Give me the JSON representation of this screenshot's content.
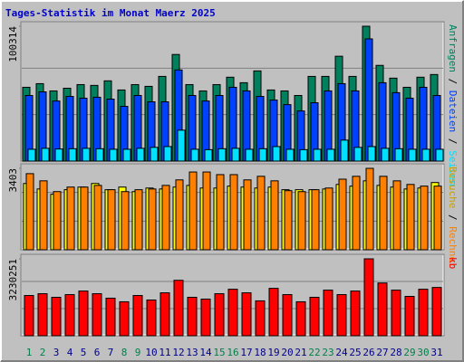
{
  "chart_data": {
    "type": "bar",
    "title": "Tages-Statistik im Monat Maerz 2025",
    "categories": [
      "1",
      "2",
      "3",
      "4",
      "5",
      "6",
      "7",
      "8",
      "9",
      "10",
      "11",
      "12",
      "13",
      "14",
      "15",
      "16",
      "17",
      "18",
      "19",
      "20",
      "21",
      "22",
      "23",
      "24",
      "25",
      "26",
      "27",
      "28",
      "29",
      "30",
      "31"
    ],
    "category_colors": [
      "#00804c",
      "#00804c",
      "#00008b",
      "#00008b",
      "#00008b",
      "#00008b",
      "#00008b",
      "#00804c",
      "#00804c",
      "#00008b",
      "#00008b",
      "#00008b",
      "#00008b",
      "#00008b",
      "#00804c",
      "#00804c",
      "#00008b",
      "#00008b",
      "#00008b",
      "#00008b",
      "#00008b",
      "#00804c",
      "#00804c",
      "#00008b",
      "#00008b",
      "#00008b",
      "#00008b",
      "#00008b",
      "#00804c",
      "#00804c",
      "#00008b"
    ],
    "legend_separator": "/",
    "panels": [
      {
        "ylim": [
          0,
          100314
        ],
        "yticks": [
          100314
        ],
        "series": [
          {
            "name": "Anfragen",
            "color": "#00805c",
            "values": [
              54900,
              57600,
              52200,
              54200,
              56900,
              56300,
              59700,
              52900,
              56900,
              55600,
              63000,
              79300,
              56900,
              52200,
              56900,
              62400,
              58300,
              67100,
              52900,
              52200,
              48800,
              63000,
              63000,
              78000,
              63000,
              100314,
              71200,
              61700,
              54900,
              62400,
              64400
            ]
          },
          {
            "name": "Dateien",
            "color": "#0040ff",
            "values": [
              48800,
              51500,
              44700,
              48100,
              46800,
              47500,
              46100,
              40700,
              48800,
              44100,
              44100,
              67800,
              48800,
              44700,
              48800,
              54900,
              52200,
              48100,
              45400,
              42000,
              37300,
              43400,
              52200,
              57600,
              52200,
              90900,
              58300,
              50900,
              46800,
              54900,
              48800
            ]
          },
          {
            "name": "Seiten",
            "color": "#00e0ff",
            "values": [
              8800,
              9500,
              9000,
              9200,
              9500,
              9200,
              8800,
              8800,
              9500,
              10200,
              10800,
              23000,
              8800,
              8500,
              9200,
              9500,
              8800,
              9200,
              10800,
              8800,
              8500,
              8800,
              8800,
              15600,
              10200,
              10800,
              9500,
              9200,
              8800,
              8800,
              8800
            ]
          }
        ]
      },
      {
        "ylim": [
          0,
          3403
        ],
        "yticks": [
          3403
        ],
        "series": [
          {
            "name": "Besuche",
            "color": "#ffff00",
            "values": [
              2770,
              2540,
              2320,
              2510,
              2620,
              2770,
              2510,
              2620,
              2430,
              2580,
              2540,
              2620,
              2690,
              2580,
              2580,
              2660,
              2620,
              2580,
              2620,
              2510,
              2510,
              2510,
              2540,
              2730,
              2660,
              2880,
              2690,
              2620,
              2540,
              2580,
              2810
            ]
          },
          {
            "name": "Rechner",
            "color": "#ff8000",
            "values": [
              3180,
              2880,
              2430,
              2620,
              2620,
              2690,
              2510,
              2430,
              2510,
              2540,
              2690,
              2920,
              3250,
              3250,
              3140,
              3140,
              2920,
              3070,
              2880,
              2470,
              2430,
              2510,
              2580,
              2950,
              3070,
              3403,
              3070,
              2880,
              2730,
              2660,
              2660
            ]
          }
        ]
      },
      {
        "ylim": [
          0,
          3230251
        ],
        "yticks": [
          3230251
        ],
        "series": [
          {
            "name": "kb",
            "color": "#ff0000",
            "values": [
              1690000,
              1765000,
              1615000,
              1728000,
              1878000,
              1765000,
              1578000,
              1427000,
              1690000,
              1502000,
              1803000,
              2329000,
              1615000,
              1540000,
              1765000,
              1953000,
              1803000,
              1465000,
              1991000,
              1728000,
              1427000,
              1615000,
              1916000,
              1728000,
              1878000,
              3230251,
              2216000,
              1916000,
              1653000,
              1953000,
              2028000
            ]
          }
        ]
      }
    ]
  }
}
